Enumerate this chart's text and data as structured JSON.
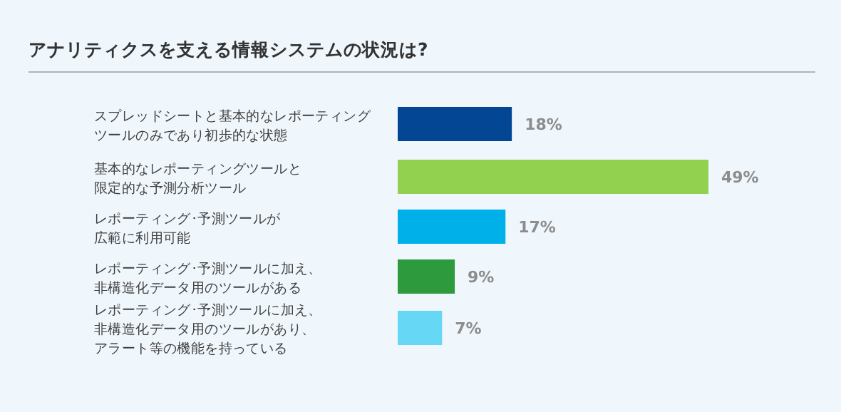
{
  "chart_data": {
    "type": "bar",
    "orientation": "horizontal",
    "title": "アナリティクスを支える情報システムの状況は?",
    "categories": [
      "スプレッドシートと基本的なレポーティングツールのみであり初歩的な状態",
      "基本的なレポーティングツールと限定的な予測分析ツール",
      "レポーティング･予測ツールが広範に利用可能",
      "レポーティング･予測ツールに加え、非構造化データ用のツールがある",
      "レポーティング･予測ツールに加え、非構造化データ用のツールがあり、アラート等の機能を持っている"
    ],
    "values": [
      18,
      49,
      17,
      9,
      7
    ],
    "colors": [
      "#034694",
      "#92d050",
      "#00b0e8",
      "#2e9a3e",
      "#66d8f6"
    ],
    "value_labels": [
      "18%",
      "49%",
      "17%",
      "9%",
      "7%"
    ]
  }
}
